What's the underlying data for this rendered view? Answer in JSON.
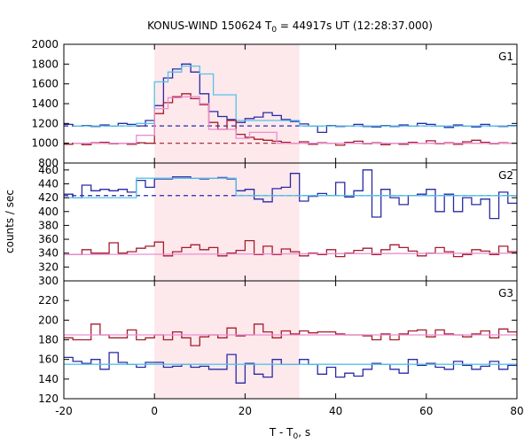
{
  "chart_data": {
    "type": "line",
    "title": "KONUS-WIND 150624 T",
    "title_sub": "0",
    "title_rest": " = 44917s UT (12:28:37.000)",
    "xlabel": "T - T",
    "xlabel_sub": "0",
    "xlabel_rest": ", s",
    "ylabel": "counts / sec",
    "xlim": [
      -20,
      80
    ],
    "x_ticks": [
      -20,
      0,
      20,
      40,
      60,
      80
    ],
    "highlight": {
      "from": 0,
      "to": 32,
      "color": "#fde8ec"
    },
    "colors": {
      "dark_blue": "#2a2aa6",
      "light_blue": "#55c3e6",
      "dark_red": "#a51d2d",
      "pink": "#e98fd0"
    },
    "panels": [
      {
        "name": "G1",
        "ylim": [
          800,
          2000
        ],
        "y_ticks": [
          800,
          1000,
          1200,
          1400,
          1600,
          1800,
          2000
        ],
        "background_levels": [
          {
            "value": 1175,
            "color": "#2a2aa6"
          },
          {
            "value": 1000,
            "color": "#a51d2d"
          }
        ],
        "series": [
          {
            "color": "#2a2aa6",
            "bin": 2,
            "x": [
              -20,
              -18,
              -16,
              -14,
              -12,
              -10,
              -8,
              -6,
              -4,
              -2,
              0,
              2,
              4,
              6,
              8,
              10,
              12,
              14,
              16,
              18,
              20,
              22,
              24,
              26,
              28,
              30,
              32,
              34,
              36,
              38,
              40,
              42,
              44,
              46,
              48,
              50,
              52,
              54,
              56,
              58,
              60,
              62,
              64,
              66,
              68,
              70,
              72,
              74,
              76,
              78
            ],
            "y": [
              1190,
              1175,
              1180,
              1170,
              1185,
              1175,
              1200,
              1190,
              1175,
              1230,
              1380,
              1660,
              1750,
              1800,
              1720,
              1500,
              1320,
              1270,
              1240,
              1210,
              1250,
              1265,
              1310,
              1280,
              1240,
              1220,
              1195,
              1175,
              1110,
              1180,
              1170,
              1175,
              1190,
              1170,
              1165,
              1180,
              1170,
              1185,
              1175,
              1200,
              1190,
              1175,
              1160,
              1185,
              1175,
              1165,
              1190,
              1175,
              1170,
              1180
            ]
          },
          {
            "color": "#55c3e6",
            "x": [
              -18,
              -4,
              -4,
              0,
              0,
              3,
              3,
              6,
              6,
              10,
              10,
              13,
              13,
              18,
              18,
              32,
              32,
              80
            ],
            "y": [
              1175,
              1175,
              1200,
              1200,
              1620,
              1620,
              1720,
              1720,
              1780,
              1780,
              1700,
              1700,
              1490,
              1490,
              1230,
              1230,
              1175,
              1175
            ],
            "step": true
          },
          {
            "color": "#a51d2d",
            "bin": 2,
            "x": [
              -20,
              -18,
              -16,
              -14,
              -12,
              -10,
              -8,
              -6,
              -4,
              -2,
              0,
              2,
              4,
              6,
              8,
              10,
              12,
              14,
              16,
              18,
              20,
              22,
              24,
              26,
              28,
              30,
              32,
              34,
              36,
              38,
              40,
              42,
              44,
              46,
              48,
              50,
              52,
              54,
              56,
              58,
              60,
              62,
              64,
              66,
              68,
              70,
              72,
              74,
              76,
              78
            ],
            "y": [
              990,
              1000,
              985,
              1005,
              1010,
              995,
              1000,
              990,
              1005,
              1000,
              1300,
              1410,
              1470,
              1500,
              1450,
              1390,
              1210,
              1140,
              1230,
              1090,
              1060,
              1040,
              1030,
              1020,
              1010,
              1000,
              1015,
              990,
              1005,
              1000,
              980,
              1010,
              1020,
              995,
              1005,
              985,
              1000,
              990,
              1010,
              1000,
              1025,
              995,
              1005,
              990,
              1015,
              1030,
              1010,
              995,
              1005,
              1000
            ]
          },
          {
            "color": "#e98fd0",
            "x": [
              -18,
              -4,
              -4,
              0,
              0,
              3,
              3,
              6,
              6,
              10,
              10,
              12,
              12,
              18,
              18,
              21,
              21,
              27,
              27,
              80
            ],
            "y": [
              1000,
              1000,
              1080,
              1080,
              1350,
              1350,
              1460,
              1460,
              1470,
              1470,
              1400,
              1400,
              1140,
              1140,
              1050,
              1050,
              1110,
              1110,
              1000,
              1000
            ],
            "step": true
          }
        ]
      },
      {
        "name": "G2",
        "ylim": [
          300,
          470
        ],
        "y_ticks": [
          300,
          320,
          340,
          360,
          380,
          400,
          420,
          440,
          460
        ],
        "background_levels": [
          {
            "value": 423,
            "color": "#2a2aa6"
          }
        ],
        "series": [
          {
            "color": "#2a2aa6",
            "bin": 2,
            "x": [
              -20,
              -18,
              -16,
              -14,
              -12,
              -10,
              -8,
              -6,
              -4,
              -2,
              0,
              2,
              4,
              6,
              8,
              10,
              12,
              14,
              16,
              18,
              20,
              22,
              24,
              26,
              28,
              30,
              32,
              34,
              36,
              38,
              40,
              42,
              44,
              46,
              48,
              50,
              52,
              54,
              56,
              58,
              60,
              62,
              64,
              66,
              68,
              70,
              72,
              74,
              76,
              78
            ],
            "y": [
              425,
              420,
              438,
              430,
              432,
              430,
              432,
              428,
              445,
              435,
              447,
              447,
              450,
              450,
              448,
              447,
              448,
              449,
              447,
              430,
              432,
              418,
              414,
              433,
              435,
              455,
              415,
              422,
              426,
              423,
              442,
              421,
              430,
              460,
              392,
              432,
              420,
              410,
              423,
              425,
              432,
              400,
              425,
              400,
              420,
              410,
              418,
              390,
              428,
              412
            ]
          },
          {
            "color": "#55c3e6",
            "x": [
              -20,
              -4,
              -4,
              18,
              18,
              80
            ],
            "y": [
              420,
              420,
              448,
              448,
              423,
              423
            ],
            "step": true
          },
          {
            "color": "#a51d2d",
            "bin": 2,
            "x": [
              -20,
              -18,
              -16,
              -14,
              -12,
              -10,
              -8,
              -6,
              -4,
              -2,
              0,
              2,
              4,
              6,
              8,
              10,
              12,
              14,
              16,
              18,
              20,
              22,
              24,
              26,
              28,
              30,
              32,
              34,
              36,
              38,
              40,
              42,
              44,
              46,
              48,
              50,
              52,
              54,
              56,
              58,
              60,
              62,
              64,
              66,
              68,
              70,
              72,
              74,
              76,
              78
            ],
            "y": [
              338,
              338,
              345,
              340,
              340,
              355,
              340,
              342,
              347,
              350,
              356,
              336,
              342,
              348,
              352,
              345,
              348,
              336,
              340,
              344,
              358,
              338,
              350,
              338,
              346,
              342,
              336,
              340,
              338,
              345,
              335,
              340,
              344,
              347,
              338,
              345,
              352,
              348,
              343,
              336,
              340,
              348,
              342,
              335,
              338,
              345,
              343,
              338,
              350,
              342
            ]
          },
          {
            "color": "#e98fd0",
            "x": [
              -20,
              80
            ],
            "y": [
              338,
              340
            ],
            "step": false
          }
        ]
      },
      {
        "name": "G3",
        "ylim": [
          120,
          240
        ],
        "y_ticks": [
          120,
          140,
          160,
          180,
          200,
          220
        ],
        "background_levels": [],
        "series": [
          {
            "color": "#a51d2d",
            "bin": 2,
            "x": [
              -20,
              -18,
              -16,
              -14,
              -12,
              -10,
              -8,
              -6,
              -4,
              -2,
              0,
              2,
              4,
              6,
              8,
              10,
              12,
              14,
              16,
              18,
              20,
              22,
              24,
              26,
              28,
              30,
              32,
              34,
              36,
              38,
              40,
              42,
              44,
              46,
              48,
              50,
              52,
              54,
              56,
              58,
              60,
              62,
              64,
              66,
              68,
              70,
              72,
              74,
              76,
              78
            ],
            "y": [
              182,
              180,
              180,
              196,
              185,
              182,
              182,
              190,
              180,
              182,
              185,
              180,
              188,
              182,
              174,
              183,
              185,
              182,
              192,
              184,
              185,
              196,
              188,
              182,
              189,
              186,
              189,
              187,
              188,
              188,
              186,
              185,
              185,
              184,
              180,
              186,
              180,
              186,
              189,
              190,
              183,
              190,
              186,
              185,
              183,
              186,
              189,
              182,
              191,
              188
            ]
          },
          {
            "color": "#e98fd0",
            "x": [
              -20,
              80
            ],
            "y": [
              185,
              185
            ],
            "step": false
          },
          {
            "color": "#2a2aa6",
            "bin": 2,
            "x": [
              -20,
              -18,
              -16,
              -14,
              -12,
              -10,
              -8,
              -6,
              -4,
              -2,
              0,
              2,
              4,
              6,
              8,
              10,
              12,
              14,
              16,
              18,
              20,
              22,
              24,
              26,
              28,
              30,
              32,
              34,
              36,
              38,
              40,
              42,
              44,
              46,
              48,
              50,
              52,
              54,
              56,
              58,
              60,
              62,
              64,
              66,
              68,
              70,
              72,
              74,
              76,
              78
            ],
            "y": [
              162,
              158,
              156,
              160,
              150,
              167,
              157,
              155,
              152,
              157,
              157,
              152,
              153,
              155,
              152,
              153,
              150,
              150,
              165,
              136,
              156,
              145,
              142,
              160,
              155,
              155,
              160,
              155,
              145,
              152,
              142,
              146,
              143,
              150,
              156,
              155,
              150,
              146,
              160,
              154,
              156,
              152,
              150,
              158,
              154,
              150,
              153,
              158,
              150,
              154
            ]
          },
          {
            "color": "#55c3e6",
            "x": [
              -20,
              80
            ],
            "y": [
              155,
              155
            ],
            "step": false
          }
        ]
      }
    ]
  }
}
